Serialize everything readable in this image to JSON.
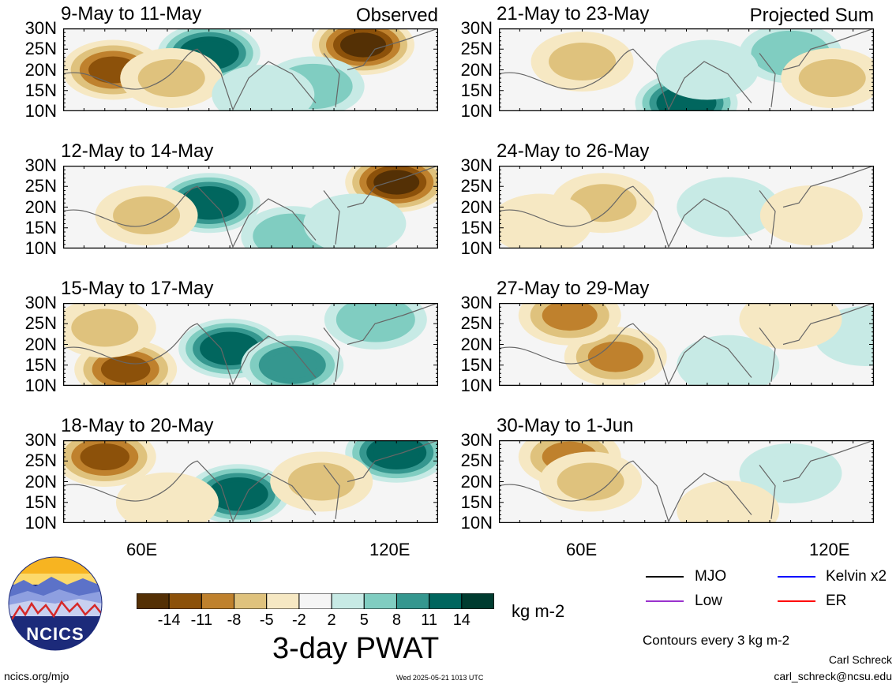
{
  "panels": [
    {
      "title": "9-May to 11-May",
      "tag": "Observed",
      "col": 0,
      "row": 0
    },
    {
      "title": "12-May to 14-May",
      "tag": "",
      "col": 0,
      "row": 1
    },
    {
      "title": "15-May to 17-May",
      "tag": "",
      "col": 0,
      "row": 2
    },
    {
      "title": "18-May to 20-May",
      "tag": "",
      "col": 0,
      "row": 3
    },
    {
      "title": "21-May to 23-May",
      "tag": "Projected Sum",
      "col": 1,
      "row": 0
    },
    {
      "title": "24-May to 26-May",
      "tag": "",
      "col": 1,
      "row": 1
    },
    {
      "title": "27-May to 29-May",
      "tag": "",
      "col": 1,
      "row": 2
    },
    {
      "title": "30-May to 1-Jun",
      "tag": "",
      "col": 1,
      "row": 3
    }
  ],
  "lat_labels": [
    "30N",
    "25N",
    "20N",
    "15N",
    "10N"
  ],
  "lon_labels": [
    "60E",
    "120E"
  ],
  "colorbar": {
    "colors": [
      "#543005",
      "#8c510a",
      "#bf812d",
      "#dfc27d",
      "#f6e8c3",
      "#f5f5f5",
      "#c7eae5",
      "#80cdc1",
      "#35978f",
      "#01665e",
      "#003c30"
    ],
    "tick_labels": [
      "-14",
      "-11",
      "-8",
      "-5",
      "-2",
      "2",
      "5",
      "8",
      "11",
      "14"
    ],
    "units": "kg m-2",
    "title": "3-day PWAT"
  },
  "legend": {
    "items": [
      {
        "label": "MJO",
        "color": "#000000"
      },
      {
        "label": "Kelvin x2",
        "color": "#0000ff"
      },
      {
        "label": "Low",
        "color": "#9a32cd"
      },
      {
        "label": "ER",
        "color": "#ff0000"
      }
    ],
    "contours_note": "Contours every 3 kg m-2"
  },
  "logo": {
    "text": "NCICS"
  },
  "footer": {
    "url": "ncics.org/mjo",
    "timestamp": "Wed 2025-05-21 1013 UTC",
    "author": "Carl Schreck",
    "email": "carl_schreck@ncsu.edu"
  },
  "chart_data": {
    "type": "heatmap",
    "variable": "3-day PWAT",
    "units": "kg m-2",
    "levels": [
      -14,
      -11,
      -8,
      -5,
      -2,
      2,
      5,
      8,
      11,
      14
    ],
    "lat_range": [
      10,
      30
    ],
    "lon_range": [
      40,
      130
    ],
    "x_ticks": [
      "60E",
      "120E"
    ],
    "y_ticks": [
      "30N",
      "25N",
      "20N",
      "15N",
      "10N"
    ],
    "panels": [
      {
        "period": "9-May to 11-May",
        "kind": "Observed",
        "features": [
          {
            "lon": 52,
            "lat": 20,
            "value": -12
          },
          {
            "lon": 75,
            "lat": 24,
            "value": 14
          },
          {
            "lon": 112,
            "lat": 26,
            "value": -14
          },
          {
            "lon": 100,
            "lat": 16,
            "value": 8
          },
          {
            "lon": 66,
            "lat": 18,
            "value": -6
          },
          {
            "lon": 88,
            "lat": 14,
            "value": 5
          }
        ]
      },
      {
        "period": "12-May to 14-May",
        "kind": "Observed",
        "features": [
          {
            "lon": 75,
            "lat": 21,
            "value": 14
          },
          {
            "lon": 120,
            "lat": 26,
            "value": -14
          },
          {
            "lon": 95,
            "lat": 13,
            "value": 8
          },
          {
            "lon": 60,
            "lat": 18,
            "value": -5
          },
          {
            "lon": 110,
            "lat": 16,
            "value": 5
          }
        ]
      },
      {
        "period": "15-May to 17-May",
        "kind": "Observed",
        "features": [
          {
            "lon": 80,
            "lat": 19,
            "value": 14
          },
          {
            "lon": 95,
            "lat": 15,
            "value": 11
          },
          {
            "lon": 115,
            "lat": 26,
            "value": 8
          },
          {
            "lon": 55,
            "lat": 14,
            "value": -11
          },
          {
            "lon": 50,
            "lat": 24,
            "value": -5
          }
        ]
      },
      {
        "period": "18-May to 20-May",
        "kind": "Observed",
        "features": [
          {
            "lon": 82,
            "lat": 17,
            "value": 14
          },
          {
            "lon": 120,
            "lat": 27,
            "value": 14
          },
          {
            "lon": 50,
            "lat": 26,
            "value": -11
          },
          {
            "lon": 102,
            "lat": 20,
            "value": -5
          },
          {
            "lon": 65,
            "lat": 15,
            "value": -2
          }
        ]
      },
      {
        "period": "21-May to 23-May",
        "kind": "Projected Sum",
        "features": [
          {
            "lon": 85,
            "lat": 12,
            "value": 14
          },
          {
            "lon": 110,
            "lat": 24,
            "value": 8
          },
          {
            "lon": 60,
            "lat": 22,
            "value": -5
          },
          {
            "lon": 120,
            "lat": 18,
            "value": -5
          },
          {
            "lon": 90,
            "lat": 20,
            "value": 5
          }
        ]
      },
      {
        "period": "24-May to 26-May",
        "kind": "Projected Sum",
        "features": [
          {
            "lon": 65,
            "lat": 21,
            "value": -5
          },
          {
            "lon": 95,
            "lat": 20,
            "value": 5
          },
          {
            "lon": 115,
            "lat": 18,
            "value": -2
          },
          {
            "lon": 50,
            "lat": 16,
            "value": -2
          }
        ]
      },
      {
        "period": "27-May to 29-May",
        "kind": "Projected Sum",
        "features": [
          {
            "lon": 68,
            "lat": 17,
            "value": -8
          },
          {
            "lon": 57,
            "lat": 27,
            "value": -8
          },
          {
            "lon": 95,
            "lat": 15,
            "value": 5
          },
          {
            "lon": 128,
            "lat": 22,
            "value": 5
          },
          {
            "lon": 110,
            "lat": 26,
            "value": -2
          }
        ]
      },
      {
        "period": "30-May to 1-Jun",
        "kind": "Projected Sum",
        "features": [
          {
            "lon": 57,
            "lat": 26,
            "value": -8
          },
          {
            "lon": 62,
            "lat": 20,
            "value": -5
          },
          {
            "lon": 110,
            "lat": 22,
            "value": 5
          },
          {
            "lon": 95,
            "lat": 13,
            "value": -2
          }
        ]
      }
    ]
  }
}
